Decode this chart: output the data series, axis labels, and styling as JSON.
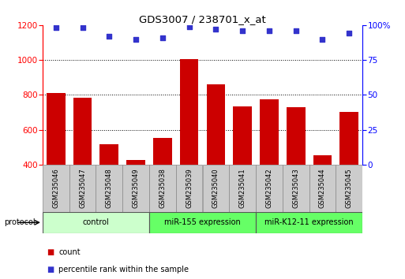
{
  "title": "GDS3007 / 238701_x_at",
  "samples": [
    "GSM235046",
    "GSM235047",
    "GSM235048",
    "GSM235049",
    "GSM235038",
    "GSM235039",
    "GSM235040",
    "GSM235041",
    "GSM235042",
    "GSM235043",
    "GSM235044",
    "GSM235045"
  ],
  "counts": [
    810,
    785,
    515,
    425,
    555,
    1005,
    860,
    735,
    775,
    730,
    455,
    700
  ],
  "percentile_ranks": [
    98,
    98,
    92,
    90,
    91,
    99,
    97,
    96,
    96,
    96,
    90,
    94
  ],
  "groups": [
    {
      "label": "control",
      "start": 0,
      "end": 4,
      "color": "#ccffcc"
    },
    {
      "label": "miR-155 expression",
      "start": 4,
      "end": 8,
      "color": "#66ff66"
    },
    {
      "label": "miR-K12-11 expression",
      "start": 8,
      "end": 12,
      "color": "#66ff66"
    }
  ],
  "bar_color": "#cc0000",
  "dot_color": "#3333cc",
  "ylim_left": [
    400,
    1200
  ],
  "ylim_right": [
    0,
    100
  ],
  "yticks_left": [
    400,
    600,
    800,
    1000,
    1200
  ],
  "yticks_right": [
    0,
    25,
    50,
    75,
    100
  ],
  "grid_values": [
    600,
    800,
    1000
  ],
  "tick_label_color": "#cccccc",
  "protocol_label": "protocol",
  "legend_count_label": "count",
  "legend_pct_label": "percentile rank within the sample"
}
